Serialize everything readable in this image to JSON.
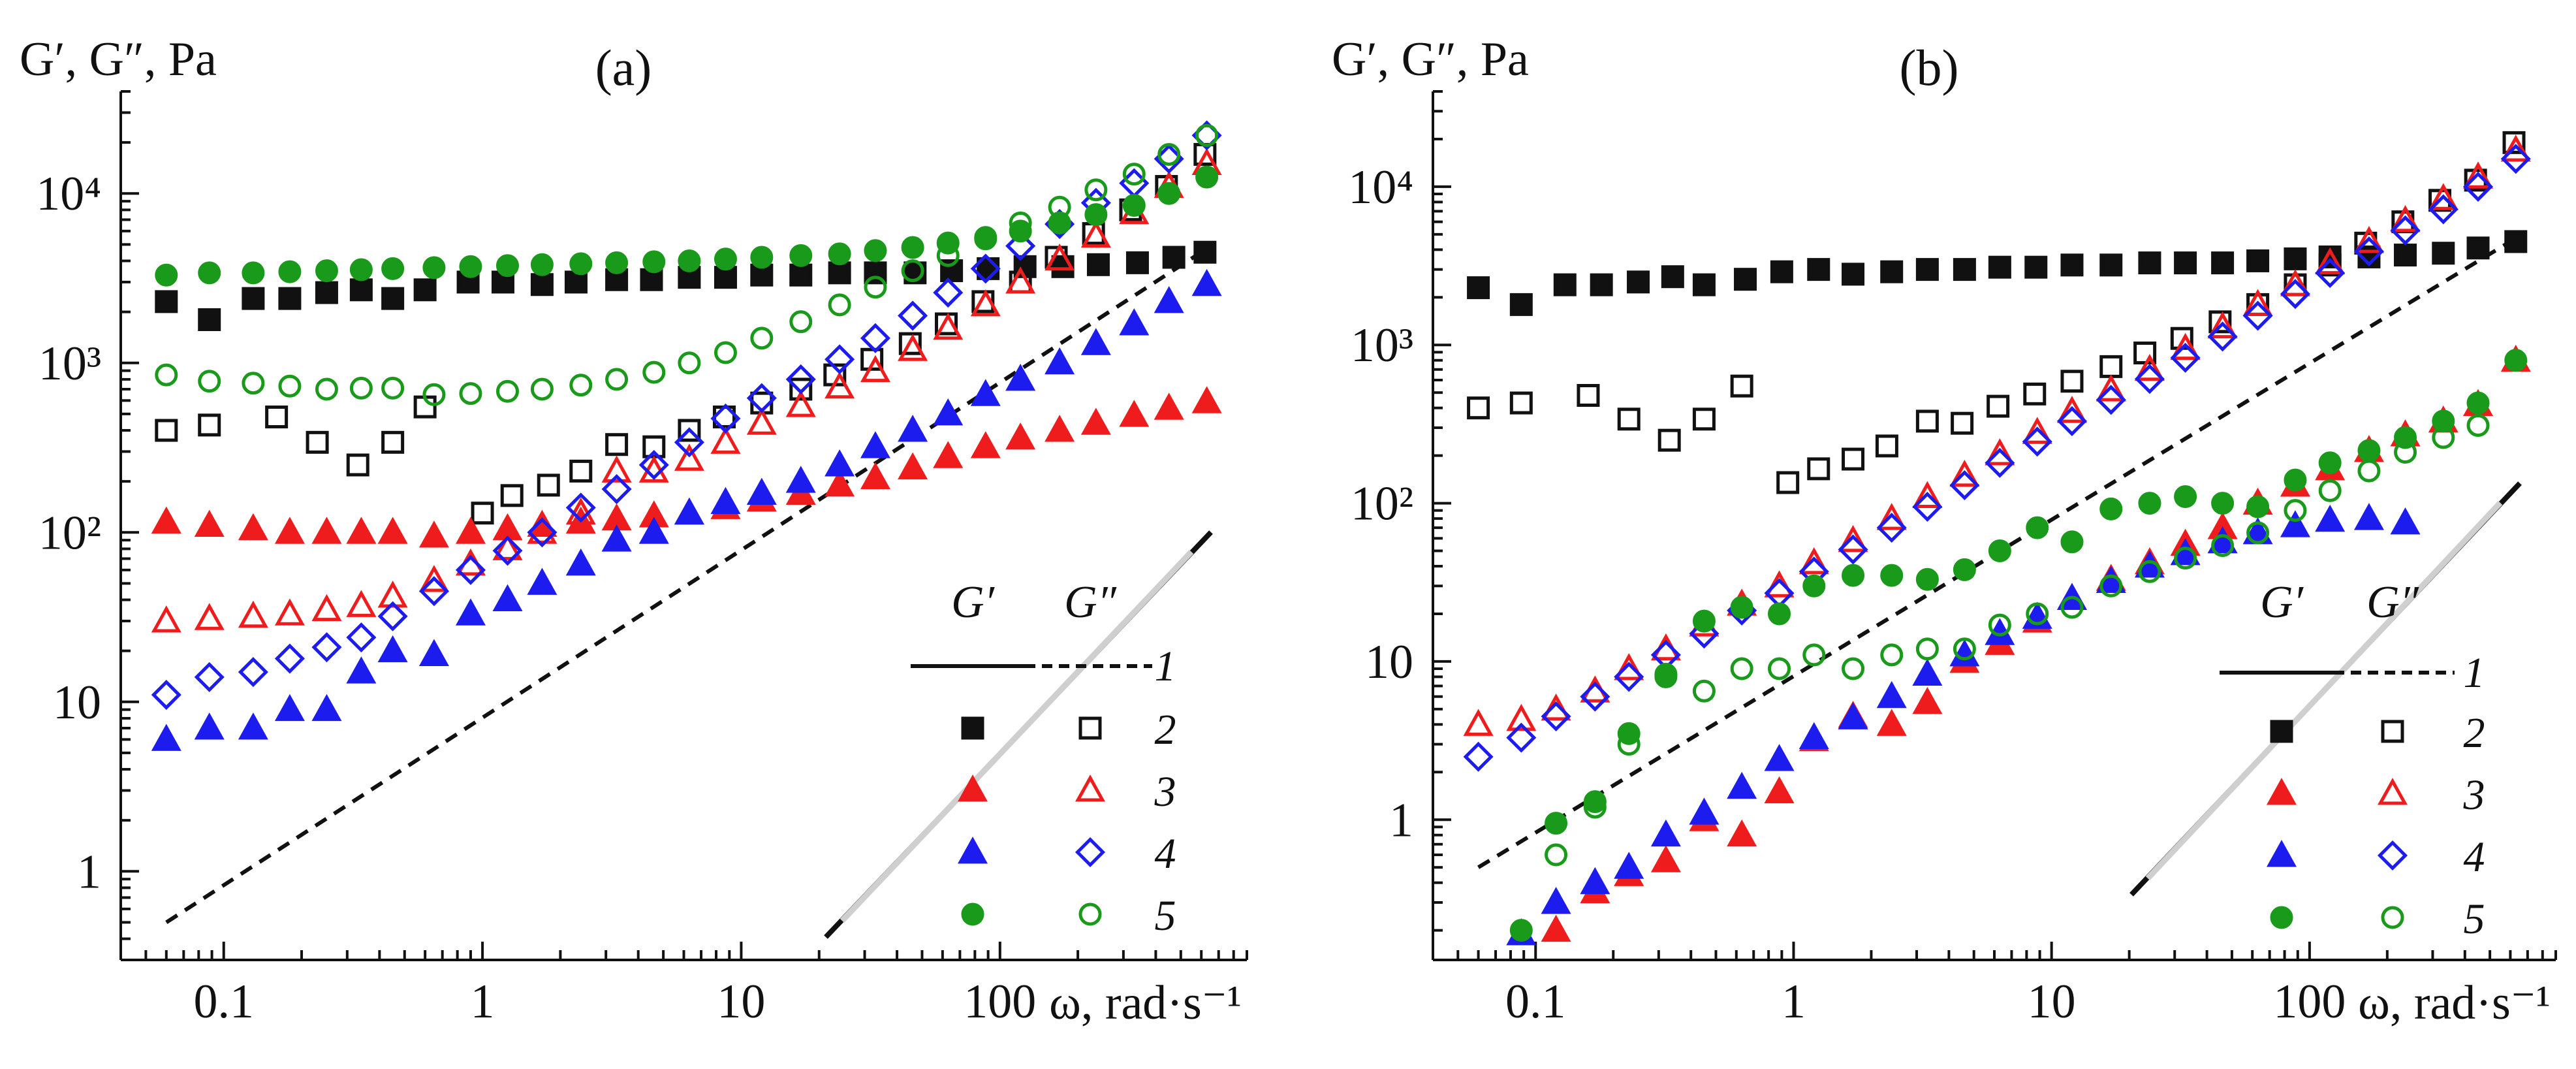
{
  "chart_data": [
    {
      "type": "scatter",
      "panel": "(a)",
      "title": "(a)",
      "xlabel": "ω, rad·s⁻¹",
      "ylabel": "G′, G″, Pa",
      "xscale": "log",
      "yscale": "log",
      "xlim": [
        0.04,
        900
      ],
      "ylim": [
        0.3,
        40000
      ],
      "x_ticks": [
        0.1,
        1,
        10,
        100
      ],
      "x_tick_labels": [
        "0.1",
        "1",
        "10",
        "100"
      ],
      "y_ticks": [
        1,
        10,
        100,
        1000,
        10000
      ],
      "y_tick_labels": [
        "1",
        "10",
        "10²",
        "10³",
        "10⁴"
      ],
      "legend_position": "bottom-right",
      "legend_headers": [
        "G′",
        "G″"
      ],
      "series": [
        {
          "name": "1",
          "label": "1",
          "color": "#111111",
          "style": "dashed-line",
          "x": [
            0.06,
            600
          ],
          "y": [
            0.5,
            4500
          ]
        },
        {
          "name": "2",
          "label": "2",
          "color": "#111111",
          "x": [
            0.06,
            0.088,
            0.13,
            0.18,
            0.25,
            0.34,
            0.45,
            0.6,
            0.88,
            1.2,
            1.7,
            2.3,
            3.3,
            4.5,
            6.3,
            8.7,
            12,
            17,
            24,
            33,
            47,
            65,
            90,
            125,
            175,
            240,
            340,
            470,
            620
          ],
          "Gp": [
            2300,
            1800,
            2400,
            2400,
            2600,
            2700,
            2400,
            2700,
            3000,
            3000,
            2900,
            3000,
            3100,
            3100,
            3200,
            3200,
            3300,
            3300,
            3400,
            3400,
            3400,
            3500,
            3600,
            3700,
            3700,
            3800,
            3900,
            4200,
            4500
          ],
          "Gpp_x": [
            0.06,
            0.088,
            0.16,
            0.23,
            0.33,
            0.45,
            0.6,
            1.0,
            1.3,
            1.8,
            2.4,
            3.3,
            4.6,
            6.3,
            8.6,
            12,
            17,
            23,
            32,
            45,
            62,
            86,
            120,
            165,
            230,
            320,
            440,
            620
          ],
          "Gpp": [
            400,
            430,
            480,
            340,
            250,
            340,
            550,
            130,
            165,
            190,
            230,
            330,
            320,
            400,
            480,
            580,
            700,
            850,
            1050,
            1300,
            1700,
            2300,
            3000,
            4200,
            5800,
            8000,
            11000,
            17000
          ]
        },
        {
          "name": "3",
          "label": "3",
          "color": "#ee1c1c",
          "x": [
            0.06,
            0.088,
            0.13,
            0.18,
            0.25,
            0.34,
            0.45,
            0.65,
            0.9,
            1.25,
            1.7,
            2.4,
            3.3,
            4.6,
            6.3,
            8.7,
            12,
            17,
            24,
            33,
            46,
            63,
            88,
            120,
            170,
            235,
            330,
            450,
            630
          ],
          "Gp": [
            115,
            110,
            105,
            100,
            100,
            100,
            100,
            95,
            100,
            105,
            110,
            115,
            120,
            125,
            130,
            140,
            155,
            170,
            190,
            210,
            240,
            280,
            320,
            360,
            400,
            440,
            490,
            540,
            590
          ],
          "Gpp_x": [
            0.06,
            0.088,
            0.13,
            0.18,
            0.25,
            0.34,
            0.45,
            0.65,
            0.9,
            1.25,
            1.7,
            2.4,
            3.3,
            4.6,
            6.3,
            8.7,
            12,
            17,
            24,
            33,
            46,
            63,
            88,
            120,
            170,
            235,
            330,
            450,
            630
          ],
          "Gpp": [
            30,
            31,
            32,
            33,
            35,
            37,
            42,
            52,
            65,
            80,
            100,
            130,
            230,
            230,
            270,
            340,
            440,
            560,
            720,
            900,
            1200,
            1600,
            2200,
            3000,
            4100,
            5600,
            7700,
            11000,
            15000
          ]
        },
        {
          "name": "4",
          "label": "4",
          "color": "#1c1cee",
          "x": [
            0.06,
            0.088,
            0.13,
            0.18,
            0.25,
            0.34,
            0.45,
            0.65,
            0.9,
            1.25,
            1.7,
            2.4,
            3.3,
            4.6,
            6.3,
            8.7,
            12,
            17,
            24,
            33,
            46,
            63,
            88,
            120,
            170,
            235,
            330,
            450,
            630
          ],
          "Gp": [
            6,
            7,
            7,
            9,
            9,
            15,
            20,
            19,
            33,
            40,
            50,
            65,
            90,
            100,
            130,
            150,
            170,
            200,
            250,
            320,
            400,
            500,
            650,
            800,
            1000,
            1300,
            1700,
            2300,
            2900
          ],
          "Gpp_x": [
            0.06,
            0.088,
            0.13,
            0.18,
            0.25,
            0.34,
            0.45,
            0.65,
            0.9,
            1.25,
            1.7,
            2.4,
            3.3,
            4.6,
            6.3,
            8.7,
            12,
            17,
            24,
            33,
            46,
            63,
            88,
            120,
            170,
            235,
            330,
            450,
            630
          ],
          "Gpp": [
            11,
            14,
            15,
            18,
            21,
            24,
            32,
            45,
            60,
            78,
            100,
            140,
            180,
            250,
            340,
            470,
            620,
            800,
            1050,
            1400,
            1900,
            2600,
            3600,
            4900,
            6600,
            8800,
            11500,
            16000,
            22000
          ]
        },
        {
          "name": "5",
          "label": "5",
          "color": "#1a9a1a",
          "x": [
            0.06,
            0.088,
            0.13,
            0.18,
            0.25,
            0.34,
            0.45,
            0.65,
            0.9,
            1.25,
            1.7,
            2.4,
            3.3,
            4.6,
            6.3,
            8.7,
            12,
            17,
            24,
            33,
            46,
            63,
            88,
            120,
            170,
            235,
            330,
            450,
            630
          ],
          "Gp": [
            3300,
            3400,
            3400,
            3450,
            3500,
            3550,
            3600,
            3650,
            3700,
            3750,
            3800,
            3850,
            3900,
            3950,
            4000,
            4100,
            4200,
            4300,
            4400,
            4600,
            4800,
            5100,
            5500,
            6000,
            6700,
            7500,
            8500,
            10000,
            12500
          ],
          "Gpp_x": [
            0.06,
            0.088,
            0.13,
            0.18,
            0.25,
            0.34,
            0.45,
            0.65,
            0.9,
            1.25,
            1.7,
            2.4,
            3.3,
            4.6,
            6.3,
            8.7,
            12,
            17,
            24,
            33,
            46,
            63,
            88,
            120,
            170,
            235,
            330,
            450,
            630
          ],
          "Gpp": [
            850,
            780,
            760,
            730,
            700,
            710,
            710,
            650,
            660,
            680,
            700,
            740,
            800,
            880,
            1000,
            1150,
            1400,
            1750,
            2200,
            2800,
            3500,
            4300,
            5400,
            6700,
            8300,
            10500,
            13000,
            17000,
            22000
          ]
        }
      ]
    },
    {
      "type": "scatter",
      "panel": "(b)",
      "title": "(b)",
      "xlabel": "ω, rad·s⁻¹",
      "ylabel": "G′, G″, Pa",
      "xscale": "log",
      "yscale": "log",
      "xlim": [
        0.04,
        900
      ],
      "ylim": [
        0.13,
        40000
      ],
      "x_ticks": [
        0.1,
        1,
        10,
        100
      ],
      "x_tick_labels": [
        "0.1",
        "1",
        "10",
        "100"
      ],
      "y_ticks": [
        1,
        10,
        100,
        1000,
        10000
      ],
      "y_tick_labels": [
        "1",
        "10",
        "10²",
        "10³",
        "10⁴"
      ],
      "legend_position": "bottom-right",
      "legend_headers": [
        "G′",
        "G″"
      ],
      "series": [
        {
          "name": "1",
          "label": "1",
          "color": "#111111",
          "style": "dashed-line",
          "x": [
            0.06,
            600
          ],
          "y": [
            0.5,
            4500
          ]
        },
        {
          "name": "2",
          "label": "2",
          "color": "#111111",
          "x": [
            0.06,
            0.088,
            0.13,
            0.18,
            0.25,
            0.34,
            0.45,
            0.65,
            0.9,
            1.25,
            1.7,
            2.4,
            3.3,
            4.6,
            6.3,
            8.7,
            12,
            17,
            24,
            33,
            46,
            63,
            88,
            120,
            170,
            235,
            330,
            450,
            630
          ],
          "Gp": [
            2300,
            1800,
            2400,
            2400,
            2500,
            2700,
            2400,
            2600,
            2900,
            3000,
            2800,
            2900,
            3000,
            3000,
            3100,
            3100,
            3200,
            3200,
            3300,
            3300,
            3300,
            3400,
            3500,
            3600,
            3600,
            3700,
            3800,
            4100,
            4500
          ],
          "Gpp_x": [
            0.06,
            0.088,
            0.16,
            0.23,
            0.33,
            0.45,
            0.63,
            0.95,
            1.25,
            1.7,
            2.3,
            3.3,
            4.5,
            6.2,
            8.6,
            12,
            17,
            23,
            32,
            45,
            63,
            88,
            120,
            165,
            230,
            320,
            440,
            620
          ],
          "Gpp": [
            400,
            430,
            480,
            340,
            250,
            340,
            550,
            135,
            165,
            190,
            230,
            330,
            320,
            410,
            490,
            590,
            730,
            890,
            1100,
            1400,
            1800,
            2400,
            3200,
            4400,
            6000,
            8200,
            11000,
            19000
          ]
        },
        {
          "name": "3",
          "label": "3",
          "color": "#ee1c1c",
          "x": [
            0.12,
            0.17,
            0.23,
            0.32,
            0.45,
            0.63,
            0.88,
            1.2,
            1.7,
            2.4,
            3.3,
            4.6,
            6.3,
            8.8,
            12,
            17,
            24,
            33,
            46,
            63,
            88,
            120,
            170,
            235,
            330,
            450,
            630
          ],
          "Gp": [
            0.2,
            0.35,
            0.45,
            0.55,
            1.0,
            0.8,
            1.5,
            3.2,
            4.5,
            4.0,
            5.5,
            10,
            13,
            18,
            25,
            33,
            42,
            55,
            70,
            100,
            130,
            165,
            215,
            270,
            330,
            420,
            800
          ],
          "Gpp_x": [
            0.06,
            0.088,
            0.12,
            0.17,
            0.23,
            0.32,
            0.45,
            0.63,
            0.88,
            1.2,
            1.7,
            2.4,
            3.3,
            4.6,
            6.3,
            8.8,
            12,
            17,
            24,
            33,
            46,
            63,
            88,
            120,
            170,
            235,
            330,
            450,
            630
          ],
          "Gpp": [
            4,
            4.3,
            5,
            6.5,
            9,
            12,
            17,
            23,
            30,
            42,
            58,
            80,
            110,
            150,
            205,
            280,
            380,
            520,
            700,
            950,
            1300,
            1800,
            2400,
            3300,
            4500,
            6100,
            8400,
            11500,
            17000
          ]
        },
        {
          "name": "4",
          "label": "4",
          "color": "#1c1cee",
          "x": [
            0.088,
            0.12,
            0.17,
            0.23,
            0.32,
            0.45,
            0.63,
            0.88,
            1.2,
            1.7,
            2.4,
            3.3,
            4.6,
            6.3,
            8.8,
            12,
            17,
            24,
            33,
            46,
            63,
            88,
            120,
            170,
            235
          ],
          "Gp": [
            0.19,
            0.3,
            0.4,
            0.5,
            0.8,
            1.1,
            1.6,
            2.4,
            3.3,
            4.4,
            6,
            8.3,
            11,
            15,
            19,
            25,
            32,
            40,
            48,
            57,
            65,
            72,
            78,
            80,
            75
          ],
          "Gpp_x": [
            0.06,
            0.088,
            0.12,
            0.17,
            0.23,
            0.32,
            0.45,
            0.63,
            0.88,
            1.2,
            1.7,
            2.4,
            3.3,
            4.6,
            6.3,
            8.8,
            12,
            17,
            24,
            33,
            46,
            63,
            88,
            120,
            170,
            235,
            330,
            450,
            630
          ],
          "Gpp": [
            2.5,
            3.3,
            4.5,
            6,
            8,
            11,
            15,
            21,
            27,
            37,
            51,
            70,
            95,
            130,
            180,
            245,
            330,
            450,
            610,
            830,
            1130,
            1530,
            2100,
            2850,
            3900,
            5300,
            7200,
            10000,
            15000
          ]
        },
        {
          "name": "5",
          "label": "5",
          "color": "#1a9a1a",
          "x": [
            0.088,
            0.12,
            0.17,
            0.23,
            0.32,
            0.45,
            0.63,
            0.88,
            1.2,
            1.7,
            2.4,
            3.3,
            4.6,
            6.3,
            8.8,
            12,
            17,
            24,
            33,
            46,
            63,
            88,
            120,
            170,
            235,
            330,
            450,
            630
          ],
          "Gp": [
            0.2,
            0.95,
            1.3,
            3.5,
            8,
            18,
            22,
            20,
            30,
            35,
            35,
            33,
            38,
            50,
            70,
            57,
            92,
            100,
            110,
            100,
            95,
            140,
            180,
            215,
            260,
            330,
            430,
            800
          ],
          "Gpp_x": [
            0.12,
            0.17,
            0.23,
            0.32,
            0.45,
            0.63,
            0.88,
            1.2,
            1.7,
            2.4,
            3.3,
            4.6,
            6.3,
            8.8,
            12,
            17,
            24,
            33,
            46,
            63,
            88,
            120,
            170,
            235,
            330,
            450
          ],
          "Gpp": [
            0.6,
            1.2,
            3.0,
            8.3,
            6.5,
            9,
            9,
            11,
            9,
            11,
            12,
            12,
            17,
            20,
            22,
            30,
            37,
            45,
            54,
            65,
            90,
            120,
            160,
            210,
            260,
            310
          ]
        }
      ]
    }
  ]
}
